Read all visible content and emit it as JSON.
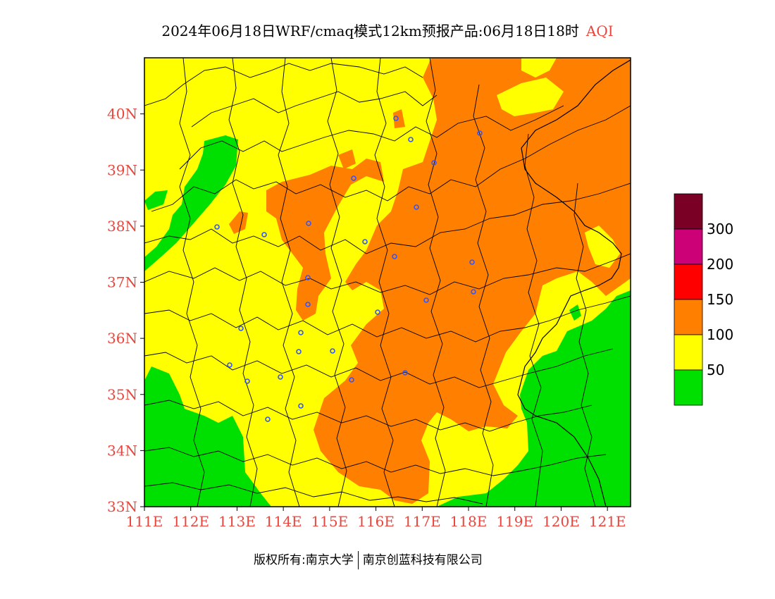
{
  "title": {
    "main": "2024年06月18日WRF/cmaq模式12km预报产品:06月18日18时",
    "variable": "AQI"
  },
  "axes": {
    "lat_labels": [
      "33N",
      "34N",
      "35N",
      "36N",
      "37N",
      "38N",
      "39N",
      "40N"
    ],
    "lon_labels": [
      "111E",
      "112E",
      "113E",
      "114E",
      "115E",
      "116E",
      "117E",
      "118E",
      "119E",
      "120E",
      "121E"
    ],
    "lon_range": [
      111,
      121.5
    ],
    "lat_range": [
      33,
      41
    ],
    "label_color": "#e8463c"
  },
  "legend": {
    "levels": [
      {
        "color": "#7a0026",
        "label": "300"
      },
      {
        "color": "#cc0077",
        "label": "200"
      },
      {
        "color": "#ff0000",
        "label": "150"
      },
      {
        "color": "#ff7f00",
        "label": "100"
      },
      {
        "color": "#ffff00",
        "label": "50"
      },
      {
        "color": "#00e000",
        "label": ""
      }
    ]
  },
  "footer": {
    "copyright": "版权所有:南京大学",
    "company": "南京创蓝科技有限公司"
  },
  "colors": {
    "green": "#00e000",
    "yellow": "#ffff00",
    "orange": "#ff7f00",
    "station": "#3355ff"
  }
}
